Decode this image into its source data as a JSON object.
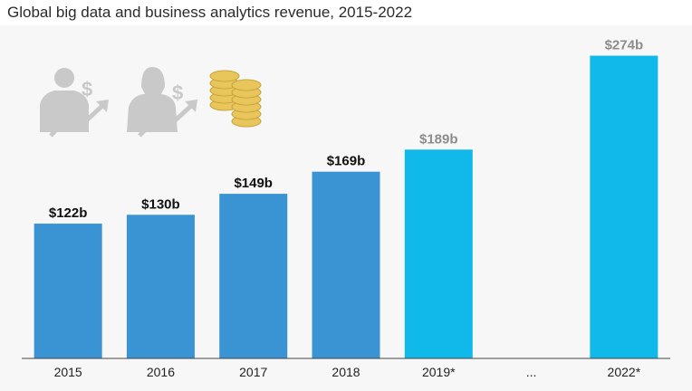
{
  "colors": {
    "actual": "#3a93d3",
    "forecast": "#10b9e9",
    "actual_label": "#111111",
    "forecast_label": "#8c8c8c",
    "icon_gray": "#c9c9c9",
    "coin_gold": "#e8c65c",
    "chart_background": "#f7f7f7",
    "axis": "#444444"
  },
  "icons": [
    "businessman-dollar-growth-icon",
    "businesswoman-dollar-growth-icon",
    "gold-coins-icon"
  ],
  "chart_data": {
    "type": "bar",
    "title": "Global big data and business analytics revenue, 2015-2022",
    "xlabel": "",
    "ylabel": "",
    "unit": "billion USD",
    "ylim": [
      0,
      290
    ],
    "grid": false,
    "legend": "none",
    "categories": [
      "2015",
      "2016",
      "2017",
      "2018",
      "2019*",
      "...",
      "2022*"
    ],
    "values": [
      122,
      130,
      149,
      169,
      189,
      null,
      274
    ],
    "value_labels": [
      "$122b",
      "$130b",
      "$149b",
      "$169b",
      "$189b",
      "",
      "$274b"
    ],
    "forecast": [
      false,
      false,
      false,
      false,
      true,
      false,
      true
    ]
  }
}
